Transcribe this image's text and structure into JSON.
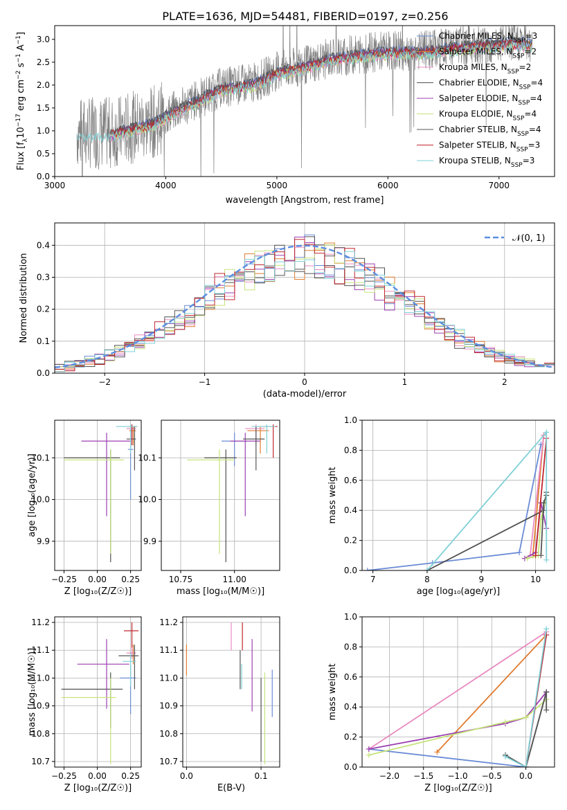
{
  "title": "PLATE=1636, MJD=54481, FIBERID=0197, z=0.256",
  "colors": {
    "Chabrier MILES": "#6a8bd6",
    "Salpeter MILES": "#e07b2e",
    "Kroupa MILES": "#e98ac0",
    "Chabrier ELODIE": "#4f4f4f",
    "Salpeter ELODIE": "#9b3fb0",
    "Kroupa ELODIE": "#c5e37a",
    "Chabrier STELIB": "#555555",
    "Salpeter STELIB": "#c0262d",
    "Kroupa STELIB": "#7fd0d6",
    "normal": "#5b8ee0",
    "data": "#808080"
  },
  "chart_data": [
    {
      "type": "line",
      "title": "PLATE=1636, MJD=54481, FIBERID=0197, z=0.256",
      "xlabel": "wavelength [Angstrom, rest frame]",
      "ylabel_parts": [
        "Flux [f",
        "λ",
        "10",
        "−17",
        " erg cm",
        "−2",
        " s",
        "−1",
        " A",
        "−1",
        "]"
      ],
      "xlim": [
        3000,
        7500
      ],
      "ylim": [
        0,
        3.3
      ],
      "xticks": [
        3000,
        4000,
        5000,
        6000,
        7000
      ],
      "yticks": [
        "0.0",
        "0.5",
        "1.0",
        "1.5",
        "2.0",
        "2.5",
        "3.0"
      ],
      "legend_position": "top-right",
      "legend": [
        {
          "imf": "Chabrier",
          "lib": "MILES",
          "n": "3"
        },
        {
          "imf": "Salpeter",
          "lib": "MILES",
          "n": "2"
        },
        {
          "imf": "Kroupa",
          "lib": "MILES",
          "n": "2"
        },
        {
          "imf": "Chabrier",
          "lib": "ELODIE",
          "n": "4"
        },
        {
          "imf": "Salpeter",
          "lib": "ELODIE",
          "n": "4"
        },
        {
          "imf": "Kroupa",
          "lib": "ELODIE",
          "n": "4"
        },
        {
          "imf": "Chabrier",
          "lib": "STELIB",
          "n": "4"
        },
        {
          "imf": "Salpeter",
          "lib": "STELIB",
          "n": "3"
        },
        {
          "imf": "Kroupa",
          "lib": "STELIB",
          "n": "3"
        }
      ],
      "continuum_x": [
        3200,
        3500,
        3900,
        4000,
        4300,
        4500,
        4800,
        5000,
        5200,
        5500,
        5800,
        6000,
        6300,
        6600,
        6900,
        7200,
        7300
      ],
      "continuum_y": [
        0.95,
        0.95,
        1.2,
        1.35,
        1.7,
        1.95,
        2.05,
        2.3,
        2.4,
        2.6,
        2.7,
        2.75,
        2.75,
        2.85,
        2.9,
        2.95,
        2.9
      ]
    },
    {
      "type": "step",
      "xlabel": "(data-model)/error",
      "ylabel": "Normed distribution",
      "xlim": [
        -2.5,
        2.5
      ],
      "ylim": [
        0,
        0.47
      ],
      "xticks": [
        "−2",
        "−1",
        "0",
        "1",
        "2"
      ],
      "yticks": [
        "0.0",
        "0.1",
        "0.2",
        "0.3",
        "0.4"
      ],
      "legend": "𝒩(0, 1)",
      "bin_width": 0.1
    },
    {
      "type": "errorbar",
      "xlabel": "Z [log₁₀(Z/Z☉)]",
      "ylabel": "age  [log₁₀(age/yr)]",
      "xlim": [
        -0.32,
        0.33
      ],
      "ylim": [
        9.83,
        10.19
      ],
      "xticks": [
        "−0.25",
        "0.00",
        "0.25"
      ],
      "yticks": [
        "9.9",
        "10.0",
        "10.1"
      ],
      "points": [
        {
          "s": "Chabrier MILES",
          "x": 0.25,
          "y": 10.12,
          "xl": 0.23,
          "xh": 0.27,
          "yl": 10.0,
          "yh": 10.17
        },
        {
          "s": "Salpeter MILES",
          "x": 0.27,
          "y": 10.165,
          "xl": 0.24,
          "xh": 0.29,
          "yl": 10.13,
          "yh": 10.175
        },
        {
          "s": "Kroupa MILES",
          "x": 0.26,
          "y": 10.17,
          "xl": 0.22,
          "xh": 0.29,
          "yl": 10.14,
          "yh": 10.18
        },
        {
          "s": "Chabrier ELODIE",
          "x": 0.1,
          "y": 10.1,
          "xl": -0.25,
          "xh": 0.17,
          "yl": 9.85,
          "yh": 10.12
        },
        {
          "s": "Salpeter ELODIE",
          "x": 0.07,
          "y": 10.14,
          "xl": -0.12,
          "xh": 0.25,
          "yl": 9.96,
          "yh": 10.16
        },
        {
          "s": "Kroupa ELODIE",
          "x": 0.1,
          "y": 10.095,
          "xl": -0.25,
          "xh": 0.2,
          "yl": 9.87,
          "yh": 10.12
        },
        {
          "s": "Chabrier STELIB",
          "x": 0.28,
          "y": 10.145,
          "xl": 0.22,
          "xh": 0.29,
          "yl": 10.07,
          "yh": 10.175
        },
        {
          "s": "Salpeter STELIB",
          "x": 0.26,
          "y": 10.175,
          "xl": 0.24,
          "xh": 0.3,
          "yl": 10.13,
          "yh": 10.18
        },
        {
          "s": "Kroupa STELIB",
          "x": 0.25,
          "y": 10.175,
          "xl": 0.14,
          "xh": 0.3,
          "yl": 10.11,
          "yh": 10.18
        }
      ]
    },
    {
      "type": "errorbar",
      "xlabel": "mass [log₁₀(M/M☉)]",
      "xlim": [
        10.66,
        11.21
      ],
      "ylim": [
        9.83,
        10.19
      ],
      "xticks": [
        "10.75",
        "11.00"
      ],
      "yticks": [
        "9.9",
        "10.0",
        "10.1"
      ],
      "points": [
        {
          "s": "Chabrier MILES",
          "x": 11.0,
          "y": 10.14,
          "xl": 10.94,
          "xh": 11.06,
          "yl": 10.08,
          "yh": 10.16
        },
        {
          "s": "Salpeter MILES",
          "x": 11.12,
          "y": 10.165,
          "xl": 11.06,
          "xh": 11.16,
          "yl": 10.11,
          "yh": 10.175
        },
        {
          "s": "Kroupa MILES",
          "x": 11.1,
          "y": 10.17,
          "xl": 11.05,
          "xh": 11.14,
          "yl": 10.13,
          "yh": 10.18
        },
        {
          "s": "Chabrier ELODIE",
          "x": 10.96,
          "y": 10.1,
          "xl": 10.86,
          "xh": 11.01,
          "yl": 9.85,
          "yh": 10.12
        },
        {
          "s": "Salpeter ELODIE",
          "x": 11.05,
          "y": 10.14,
          "xl": 10.98,
          "xh": 11.12,
          "yl": 9.96,
          "yh": 10.16
        },
        {
          "s": "Kroupa ELODIE",
          "x": 10.93,
          "y": 10.095,
          "xl": 10.78,
          "xh": 11.0,
          "yl": 9.87,
          "yh": 10.12
        },
        {
          "s": "Chabrier STELIB",
          "x": 11.1,
          "y": 10.145,
          "xl": 11.04,
          "xh": 11.14,
          "yl": 10.07,
          "yh": 10.175
        },
        {
          "s": "Salpeter STELIB",
          "x": 11.18,
          "y": 10.175,
          "xl": 11.13,
          "xh": 11.2,
          "yl": 10.1,
          "yh": 10.18
        },
        {
          "s": "Kroupa STELIB",
          "x": 11.15,
          "y": 10.175,
          "xl": 11.08,
          "xh": 11.19,
          "yl": 10.11,
          "yh": 10.18
        }
      ]
    },
    {
      "type": "line",
      "xlabel": "age  [log₁₀(age/yr)]",
      "ylabel": "mass weight",
      "xlim": [
        6.8,
        10.35
      ],
      "ylim": [
        0,
        1
      ],
      "xticks": [
        "7",
        "8",
        "9",
        "10"
      ],
      "yticks": [
        "0.0",
        "0.2",
        "0.4",
        "0.6",
        "0.8",
        "1.0"
      ],
      "series": [
        {
          "s": "Chabrier MILES",
          "x": [
            6.9,
            8.1,
            9.7,
            10.1
          ],
          "y": [
            0.0,
            0.05,
            0.12,
            0.84
          ]
        },
        {
          "s": "Salpeter MILES",
          "x": [
            9.95,
            10.15
          ],
          "y": [
            0.1,
            0.9
          ]
        },
        {
          "s": "Kroupa MILES",
          "x": [
            9.9,
            10.15
          ],
          "y": [
            0.1,
            0.9
          ]
        },
        {
          "s": "Chabrier ELODIE",
          "x": [
            8.0,
            10.15,
            10.2
          ],
          "y": [
            0.0,
            0.4,
            0.52
          ]
        },
        {
          "s": "Salpeter ELODIE",
          "x": [
            9.8,
            10.0,
            10.1,
            10.2
          ],
          "y": [
            0.08,
            0.12,
            0.45,
            0.28
          ]
        },
        {
          "s": "Kroupa ELODIE",
          "x": [
            9.85,
            10.05,
            10.1,
            10.2
          ],
          "y": [
            0.08,
            0.1,
            0.34,
            0.5
          ]
        },
        {
          "s": "Chabrier STELIB",
          "x": [
            10.1,
            10.15,
            10.2
          ],
          "y": [
            0.1,
            0.45,
            0.5
          ]
        },
        {
          "s": "Salpeter STELIB",
          "x": [
            10.0,
            10.2
          ],
          "y": [
            0.1,
            0.88
          ]
        },
        {
          "s": "Kroupa STELIB",
          "x": [
            8.0,
            10.2,
            10.2
          ],
          "y": [
            0.0,
            0.92,
            0.07
          ]
        }
      ]
    },
    {
      "type": "errorbar",
      "xlabel": "Z [log₁₀(Z/Z☉)]",
      "ylabel": "mass [log₁₀(M/M☉)]",
      "xlim": [
        -0.32,
        0.33
      ],
      "ylim": [
        10.68,
        11.22
      ],
      "xticks": [
        "−0.25",
        "0.00",
        "0.25"
      ],
      "yticks": [
        "10.7",
        "10.8",
        "10.9",
        "11.0",
        "11.1",
        "11.2"
      ],
      "points": [
        {
          "s": "Chabrier MILES",
          "x": 0.25,
          "y": 11.0,
          "xl": 0.17,
          "xh": 0.29,
          "yl": 10.87,
          "yh": 11.05
        },
        {
          "s": "Salpeter MILES",
          "x": 0.27,
          "y": 11.09,
          "xl": 0.24,
          "xh": 0.29,
          "yl": 11.05,
          "yh": 11.12
        },
        {
          "s": "Kroupa MILES",
          "x": 0.26,
          "y": 11.09,
          "xl": 0.22,
          "xh": 0.29,
          "yl": 11.07,
          "yh": 11.13
        },
        {
          "s": "Chabrier ELODIE",
          "x": 0.1,
          "y": 10.96,
          "xl": -0.27,
          "xh": 0.19,
          "yl": 10.82,
          "yh": 11.02
        },
        {
          "s": "Salpeter ELODIE",
          "x": 0.07,
          "y": 11.05,
          "xl": -0.15,
          "xh": 0.24,
          "yl": 10.89,
          "yh": 11.14
        },
        {
          "s": "Kroupa ELODIE",
          "x": 0.1,
          "y": 10.93,
          "xl": -0.27,
          "xh": 0.14,
          "yl": 10.69,
          "yh": 11.0
        },
        {
          "s": "Chabrier STELIB",
          "x": 0.28,
          "y": 11.08,
          "xl": 0.16,
          "xh": 0.31,
          "yl": 10.96,
          "yh": 11.12
        },
        {
          "s": "Salpeter STELIB",
          "x": 0.26,
          "y": 11.17,
          "xl": 0.2,
          "xh": 0.31,
          "yl": 11.11,
          "yh": 11.2
        },
        {
          "s": "Kroupa STELIB",
          "x": 0.25,
          "y": 11.06,
          "xl": 0.19,
          "xh": 0.29,
          "yl": 10.97,
          "yh": 11.09
        }
      ]
    },
    {
      "type": "errorbar",
      "xlabel": "E(B-V)",
      "xlim": [
        -0.005,
        0.125
      ],
      "ylim": [
        10.68,
        11.22
      ],
      "xticks": [
        "0.0",
        "0.1"
      ],
      "yticks": [
        "10.7",
        "10.8",
        "10.9",
        "11.0",
        "11.1",
        "11.2"
      ],
      "points": [
        {
          "s": "Chabrier MILES",
          "x": 0.115,
          "y": 10.95,
          "yl": 10.86,
          "yh": 11.03
        },
        {
          "s": "Salpeter MILES",
          "x": 0.0,
          "y": 11.06,
          "yl": 11.01,
          "yh": 11.12
        },
        {
          "s": "Kroupa MILES",
          "x": 0.06,
          "y": 11.14,
          "yl": 11.1,
          "yh": 11.2
        },
        {
          "s": "Chabrier ELODIE",
          "x": 0.1,
          "y": 10.86,
          "yl": 10.7,
          "yh": 11.0
        },
        {
          "s": "Salpeter ELODIE",
          "x": 0.088,
          "y": 11.0,
          "yl": 10.88,
          "yh": 11.14
        },
        {
          "s": "Kroupa ELODIE",
          "x": 0.105,
          "y": 10.85,
          "yl": 10.69,
          "yh": 11.02
        },
        {
          "s": "Chabrier STELIB",
          "x": 0.072,
          "y": 11.03,
          "yl": 10.96,
          "yh": 11.1
        },
        {
          "s": "Salpeter STELIB",
          "x": 0.075,
          "y": 11.16,
          "yl": 11.1,
          "yh": 11.2
        },
        {
          "s": "Kroupa STELIB",
          "x": 0.074,
          "y": 11.0,
          "yl": 10.96,
          "yh": 11.05
        }
      ]
    },
    {
      "type": "line",
      "xlabel": "Z [log₁₀(Z/Z☉)]",
      "ylabel": "mass weight",
      "xlim": [
        -2.4,
        0.42
      ],
      "ylim": [
        0,
        1
      ],
      "xticks": [
        "−2.0",
        "−1.5",
        "−1.0",
        "−0.5",
        "0.0"
      ],
      "yticks": [
        "0.0",
        "0.2",
        "0.4",
        "0.6",
        "0.8",
        "1.0"
      ],
      "series": [
        {
          "s": "Chabrier MILES",
          "x": [
            -2.3,
            0.0,
            0.3
          ],
          "y": [
            0.12,
            0.0,
            0.88
          ]
        },
        {
          "s": "Salpeter MILES",
          "x": [
            -1.3,
            0.3
          ],
          "y": [
            0.1,
            0.88
          ]
        },
        {
          "s": "Kroupa MILES",
          "x": [
            -2.3,
            0.3
          ],
          "y": [
            0.12,
            0.9
          ]
        },
        {
          "s": "Chabrier ELODIE",
          "x": [
            -0.3,
            0.0,
            0.3
          ],
          "y": [
            0.08,
            0.0,
            0.5
          ]
        },
        {
          "s": "Salpeter ELODIE",
          "x": [
            -2.3,
            -0.3,
            0.0,
            0.3
          ],
          "y": [
            0.12,
            0.29,
            0.33,
            0.5
          ]
        },
        {
          "s": "Kroupa ELODIE",
          "x": [
            -2.3,
            -0.3,
            0.0,
            0.3
          ],
          "y": [
            0.08,
            0.3,
            0.33,
            0.45
          ]
        },
        {
          "s": "Chabrier STELIB",
          "x": [
            0.0,
            0.3,
            0.3
          ],
          "y": [
            0.0,
            0.5,
            0.38
          ]
        },
        {
          "s": "Salpeter STELIB",
          "x": [
            0.0,
            0.3
          ],
          "y": [
            0.0,
            0.88
          ]
        },
        {
          "s": "Kroupa STELIB",
          "x": [
            -0.3,
            0.0,
            0.3
          ],
          "y": [
            0.07,
            0.0,
            0.92
          ]
        }
      ]
    }
  ]
}
